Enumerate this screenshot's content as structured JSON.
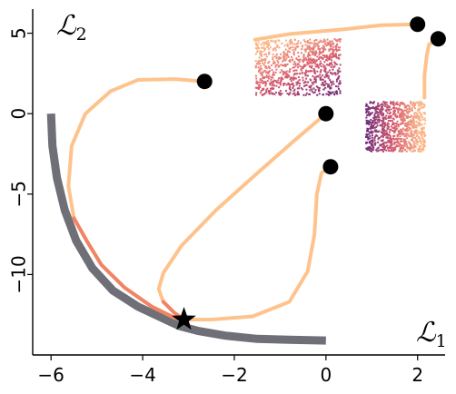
{
  "chart_data": {
    "type": "line",
    "title": "",
    "xlabel": {
      "main": "ℒ",
      "sub": "1"
    },
    "ylabel": {
      "main": "ℒ",
      "sub": "2"
    },
    "xlim": [
      -6.4,
      2.6
    ],
    "ylim": [
      -15,
      6.5
    ],
    "x_ticks": [
      -6,
      -4,
      -2,
      0,
      2
    ],
    "x_tick_labels": [
      "−6",
      "−4",
      "−2",
      "0",
      "2"
    ],
    "y_ticks": [
      5,
      0,
      -5,
      -10
    ],
    "y_tick_labels": [
      "5",
      "0",
      "−5",
      "−10"
    ],
    "grid": false,
    "legend": "none",
    "colors": {
      "front": "#6f6f77",
      "trajectory": "#fec38c",
      "trajectory_hot": "#f08465",
      "start_marker": "#000000",
      "optimum_marker": "#000000",
      "cloud_dark": "#6e2a78",
      "cloud_mid": "#d65a6e",
      "cloud_light": "#fcb484"
    },
    "pareto_front": {
      "x": [
        -6.0,
        -5.97,
        -5.87,
        -5.7,
        -5.45,
        -5.1,
        -4.65,
        -4.1,
        -3.5,
        -3.2,
        -2.8,
        -2.2,
        -1.5,
        -0.8,
        0.0
      ],
      "y": [
        0.0,
        -2.0,
        -4.0,
        -6.0,
        -7.9,
        -9.6,
        -11.0,
        -12.0,
        -12.8,
        -13.2,
        -13.5,
        -13.8,
        -14.0,
        -14.05,
        -14.1
      ]
    },
    "optimum": {
      "x": -3.1,
      "y": -12.8
    },
    "trajectories": [
      {
        "start": {
          "x": -2.65,
          "y": 2.0
        },
        "x": [
          -2.65,
          -3.3,
          -4.1,
          -4.7,
          -5.25,
          -5.55,
          -5.62,
          -5.5,
          -5.2,
          -4.9,
          -4.4,
          -3.8,
          -3.3,
          -3.1
        ],
        "y": [
          2.0,
          2.15,
          2.1,
          1.4,
          0.0,
          -2.0,
          -4.5,
          -6.5,
          -8.0,
          -9.4,
          -10.8,
          -12.0,
          -12.7,
          -12.8
        ],
        "hot_from": 7
      },
      {
        "start": {
          "x": 0.0,
          "y": 0.0
        },
        "x": [
          0.0,
          -0.7,
          -1.5,
          -2.4,
          -3.15,
          -3.55,
          -3.65,
          -3.55,
          -3.3,
          -3.1
        ],
        "y": [
          0.0,
          -1.7,
          -3.7,
          -6.0,
          -8.2,
          -9.9,
          -10.9,
          -11.7,
          -12.4,
          -12.8
        ],
        "hot_from": 7
      },
      {
        "start": {
          "x": 0.1,
          "y": -3.3
        },
        "x": [
          0.1,
          -0.1,
          -0.2,
          -0.25,
          -0.4,
          -0.8,
          -1.6,
          -2.5,
          -3.1
        ],
        "y": [
          -3.3,
          -3.7,
          -5.0,
          -7.5,
          -9.8,
          -11.7,
          -12.6,
          -12.8,
          -12.8
        ],
        "hot_from": 99
      },
      {
        "start": {
          "x": 2.0,
          "y": 5.55
        },
        "x": [
          2.0,
          1.2,
          0.4,
          -0.8,
          -1.55
        ],
        "y": [
          5.55,
          5.5,
          5.25,
          4.95,
          4.6
        ],
        "hot_from": 99
      },
      {
        "start": {
          "x": 2.45,
          "y": 4.65
        },
        "x": [
          2.45,
          2.25,
          2.2,
          2.15,
          2.15
        ],
        "y": [
          4.65,
          4.3,
          3.6,
          2.4,
          1.0
        ],
        "hot_from": 99
      }
    ],
    "clouds": [
      {
        "x_range": [
          -1.55,
          0.3
        ],
        "y_range": [
          1.2,
          4.7
        ]
      },
      {
        "x_range": [
          0.85,
          2.15
        ],
        "y_range": [
          -2.3,
          0.8
        ]
      }
    ]
  }
}
